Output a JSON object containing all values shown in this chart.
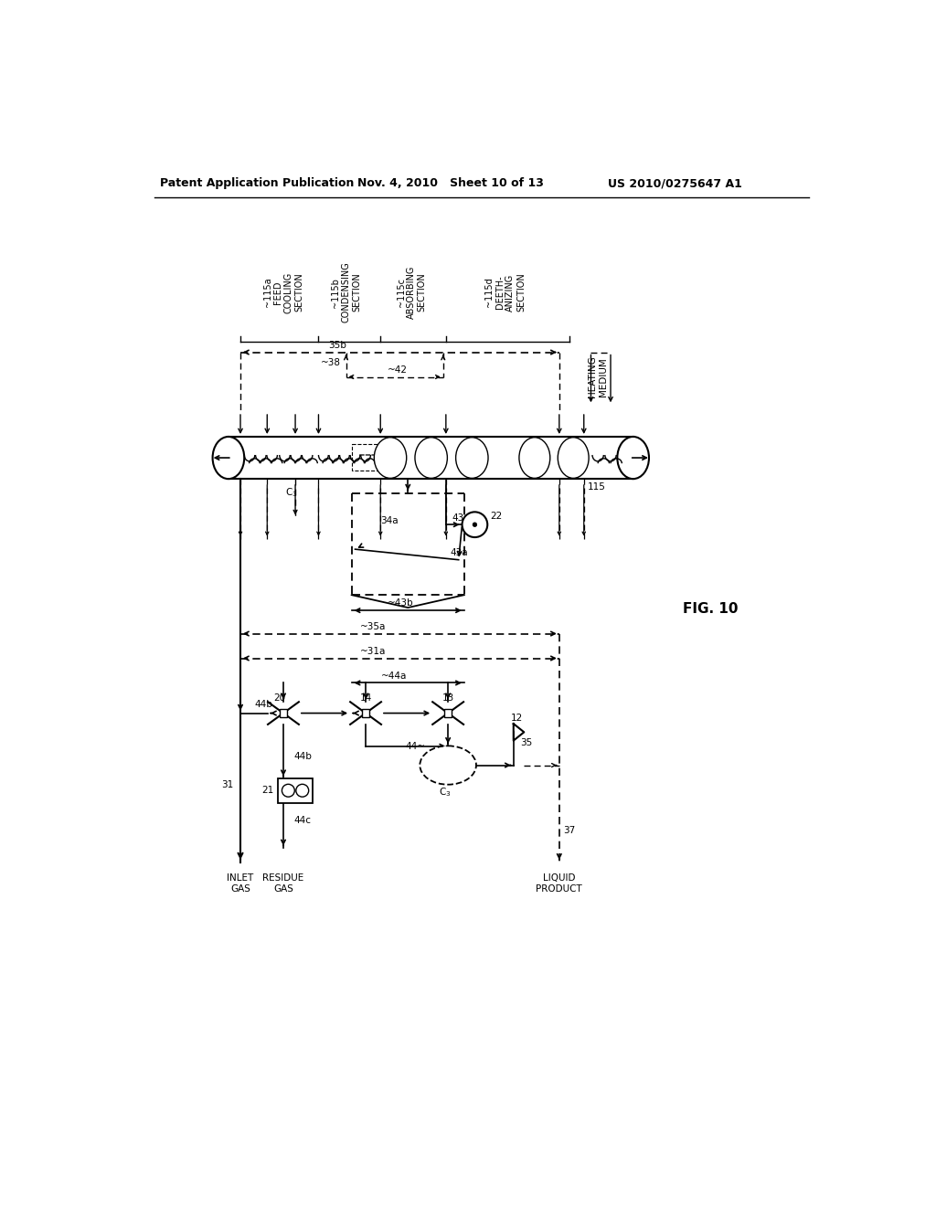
{
  "title": "FIG. 10",
  "header_left": "Patent Application Publication",
  "header_mid": "Nov. 4, 2010   Sheet 10 of 13",
  "header_right": "US 2010/0275647 A1",
  "bg_color": "#ffffff",
  "lc": "#000000"
}
